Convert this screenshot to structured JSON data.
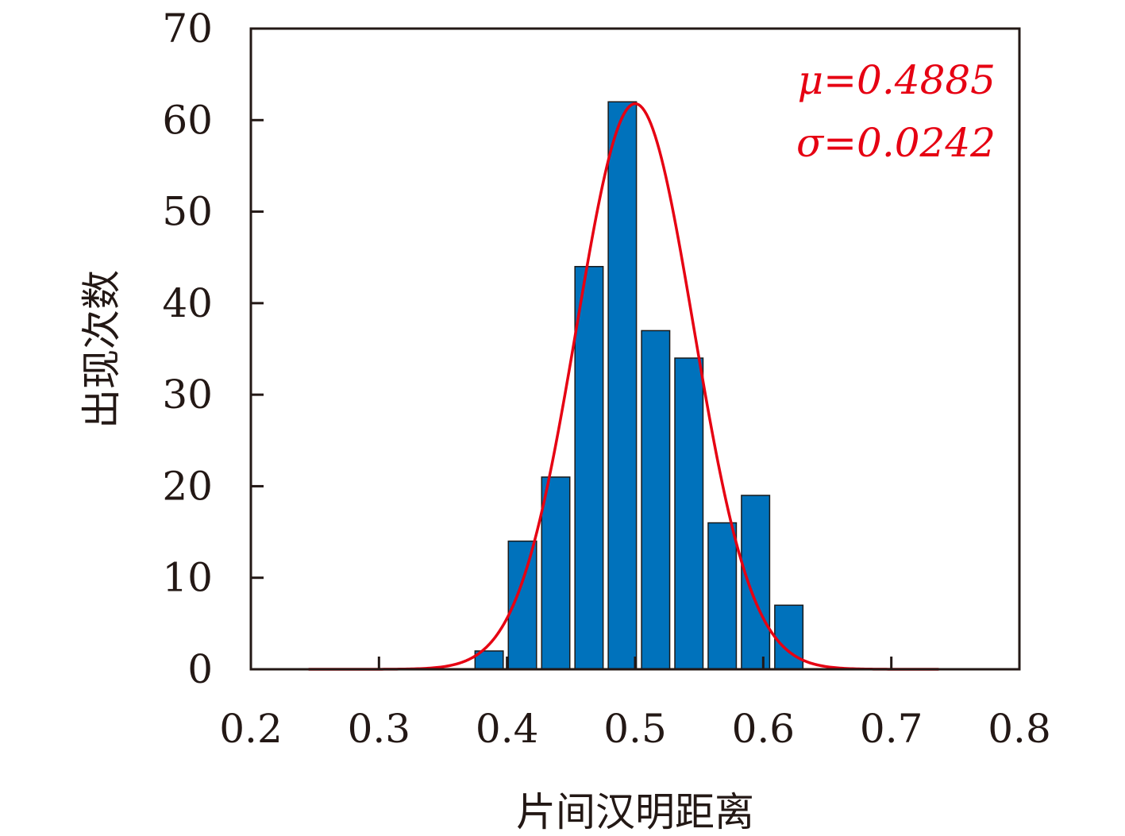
{
  "chart_data": {
    "type": "bar",
    "xlabel": "片间汉明距离",
    "ylabel": "出现次数",
    "xlim": [
      0.2,
      0.8
    ],
    "ylim": [
      0,
      70
    ],
    "x_ticks": [
      "0.2",
      "0.3",
      "0.4",
      "0.5",
      "0.6",
      "0.7",
      "0.8"
    ],
    "y_ticks": [
      "0",
      "10",
      "20",
      "30",
      "40",
      "50",
      "60",
      "70"
    ],
    "bar_width": 0.022,
    "bars": [
      {
        "x": 0.386,
        "value": 2
      },
      {
        "x": 0.412,
        "value": 14
      },
      {
        "x": 0.438,
        "value": 21
      },
      {
        "x": 0.464,
        "value": 44
      },
      {
        "x": 0.49,
        "value": 62
      },
      {
        "x": 0.516,
        "value": 37
      },
      {
        "x": 0.542,
        "value": 34
      },
      {
        "x": 0.568,
        "value": 16
      },
      {
        "x": 0.594,
        "value": 19
      },
      {
        "x": 0.62,
        "value": 7
      }
    ],
    "fit_curve": {
      "type": "normal",
      "mu": 0.4885,
      "sigma": 0.0242,
      "x_range": [
        0.245,
        0.737
      ],
      "peak": 61.8,
      "peak_x": 0.5,
      "plot_sigma": 0.0456,
      "color": "#e60012"
    },
    "annotations": {
      "mu_text": "μ=0.4885",
      "sigma_text": "σ=0.0242",
      "color": "#e60012"
    },
    "bar_color": "#0072bc",
    "grid": false
  }
}
